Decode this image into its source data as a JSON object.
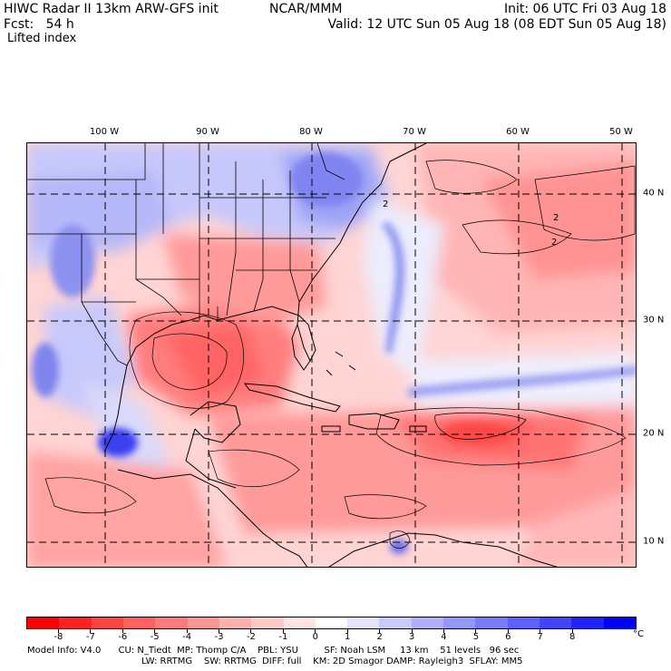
{
  "header": {
    "line1_left": "HIWC Radar II 13km ARW-GFS init",
    "line1_mid": "NCAR/MMM",
    "line1_right": "Init: 06 UTC Fri 03 Aug 18",
    "line2_left": "Fcst:   54 h",
    "line2_right": "Valid: 12 UTC Sun 05 Aug 18 (08 EDT Sun 05 Aug 18)",
    "field": "Lifted index"
  },
  "map": {
    "lon_labels": [
      "100 W",
      "90 W",
      "80 W",
      "70 W",
      "60 W",
      "50 W"
    ],
    "lat_labels": [
      "40 N",
      "30 N",
      "20 N",
      "10 N"
    ],
    "contour_label": "2"
  },
  "colorbar": {
    "ticks": [
      "-8",
      "-7",
      "-6",
      "-5",
      "-4",
      "-3",
      "-2",
      "-1",
      "0",
      "1",
      "2",
      "3",
      "4",
      "5",
      "6",
      "7",
      "8"
    ],
    "unit": "°C",
    "colors": [
      "#ff0000",
      "#ff2222",
      "#ff4444",
      "#ff6060",
      "#ff7b7b",
      "#ff9696",
      "#ffb0b0",
      "#ffcaca",
      "#ffe4e4",
      "#ffffff",
      "#e4e4ff",
      "#cacaff",
      "#b0b0ff",
      "#9696ff",
      "#7b7bff",
      "#6060ff",
      "#4444ff",
      "#2222ff",
      "#0000ff"
    ]
  },
  "model_info": {
    "line1": "Model Info: V4.0      CU: N_Tiedt  MP: Thomp C/A    PBL: YSU         SF: Noah LSM     13 km    51 levels   96 sec",
    "line2": "LW: RRTMG    SW: RRTMG  DIFF: full    KM: 2D Smagor DAMP: Rayleigh3  SFLAY: MM5"
  }
}
